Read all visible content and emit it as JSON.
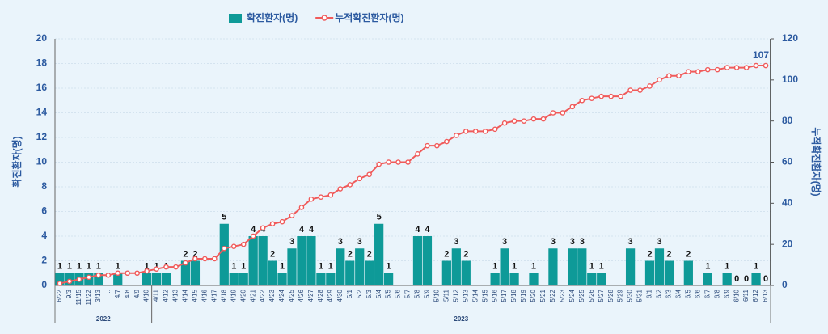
{
  "chart_data": {
    "type": "bar-line",
    "categories": [
      "6/22",
      "9/3",
      "11/15",
      "11/22",
      "3/13",
      "...",
      "4/7",
      "4/8",
      "4/9",
      "4/10",
      "4/11",
      "4/12",
      "4/13",
      "4/14",
      "4/15",
      "4/16",
      "4/17",
      "4/18",
      "4/19",
      "4/20",
      "4/21",
      "4/22",
      "4/23",
      "4/24",
      "4/25",
      "4/26",
      "4/27",
      "4/28",
      "4/29",
      "4/30",
      "5/1",
      "5/2",
      "5/3",
      "5/4",
      "5/5",
      "5/6",
      "5/7",
      "5/8",
      "5/9",
      "5/10",
      "5/11",
      "5/12",
      "5/13",
      "5/14",
      "5/15",
      "5/16",
      "5/17",
      "5/18",
      "5/19",
      "5/20",
      "5/21",
      "5/22",
      "5/23",
      "5/24",
      "5/25",
      "5/26",
      "5/27",
      "5/28",
      "5/29",
      "5/30",
      "5/31",
      "6/1",
      "6/2",
      "6/3",
      "6/4",
      "6/5",
      "6/6",
      "6/7",
      "6/8",
      "6/9",
      "6/10",
      "6/11",
      "6/12",
      "6/13"
    ],
    "groups": [
      {
        "label": "2022",
        "from": "6/22",
        "to": "4/10"
      },
      {
        "label": "2023",
        "from": "4/11",
        "to": "6/13"
      }
    ],
    "series": [
      {
        "name": "확진환자(명)",
        "type": "bar",
        "color": "#0e9a98",
        "values": [
          1,
          1,
          1,
          1,
          1,
          null,
          1,
          null,
          null,
          1,
          1,
          1,
          null,
          2,
          2,
          null,
          null,
          5,
          1,
          1,
          4,
          4,
          2,
          1,
          3,
          4,
          4,
          1,
          1,
          3,
          2,
          3,
          2,
          5,
          1,
          null,
          null,
          4,
          4,
          null,
          2,
          3,
          2,
          null,
          null,
          1,
          3,
          1,
          null,
          1,
          null,
          3,
          null,
          3,
          3,
          1,
          1,
          null,
          null,
          3,
          null,
          2,
          3,
          2,
          null,
          2,
          null,
          1,
          null,
          1,
          0,
          0,
          1,
          0
        ]
      },
      {
        "name": "누적확진환자(명)",
        "type": "line",
        "axis": "y2",
        "color": "#f05a5a",
        "values": [
          1,
          2,
          3,
          4,
          5,
          5,
          6,
          6,
          6,
          7,
          8,
          9,
          9,
          11,
          13,
          13,
          13,
          18,
          19,
          20,
          24,
          28,
          30,
          31,
          34,
          38,
          42,
          43,
          44,
          47,
          49,
          52,
          54,
          59,
          60,
          60,
          60,
          64,
          68,
          68,
          70,
          73,
          75,
          75,
          75,
          76,
          79,
          80,
          80,
          81,
          81,
          84,
          84,
          87,
          90,
          91,
          92,
          92,
          92,
          95,
          95,
          97,
          100,
          102,
          102,
          104,
          104,
          105,
          105,
          106,
          106,
          106,
          107,
          107
        ]
      }
    ],
    "ylabel": "확진환자(명)",
    "y2label": "누적확진환자(명)",
    "ylim": [
      0,
      20
    ],
    "yticks": [
      0,
      2,
      4,
      6,
      8,
      10,
      12,
      14,
      16,
      18,
      20
    ],
    "y2lim": [
      0,
      120
    ],
    "y2ticks": [
      0,
      20,
      40,
      60,
      80,
      100,
      120
    ],
    "grid": true,
    "legend": "top"
  }
}
